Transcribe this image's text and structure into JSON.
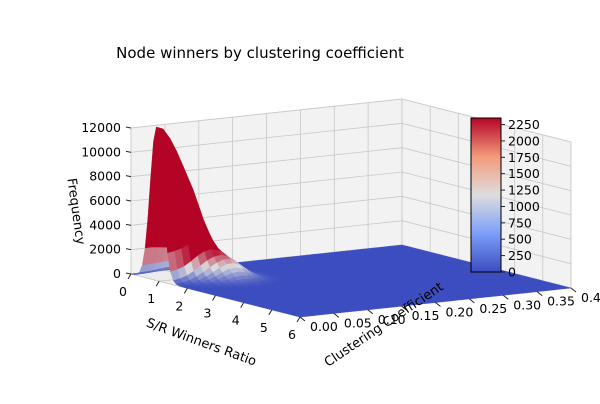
{
  "chart_data": {
    "type": "surface3d",
    "title": "Node winners by clustering coefficient",
    "xlabel": "S/R Winners Ratio",
    "ylabel": "Clustering Coefficient",
    "zlabel": "Frequency",
    "xlim": [
      0,
      6
    ],
    "ylim": [
      0,
      0.4
    ],
    "zlim": [
      0,
      12000
    ],
    "x_ticks": [
      "0",
      "1",
      "2",
      "3",
      "4",
      "5",
      "6"
    ],
    "y_ticks": [
      "0.00",
      "0.05",
      "0.10",
      "0.15",
      "0.20",
      "0.25",
      "0.30",
      "0.35",
      "0.40"
    ],
    "z_ticks": [
      "0",
      "2000",
      "4000",
      "6000",
      "8000",
      "10000",
      "12000"
    ],
    "colormap": "coolwarm",
    "colormap_low": "#3b4cc0",
    "colormap_mid": "#dddddd",
    "colormap_high": "#b40426",
    "colorbar": {
      "vmin": 0,
      "vmax": 2350,
      "ticks": [
        "0",
        "250",
        "500",
        "750",
        "1000",
        "1250",
        "1500",
        "1750",
        "2000",
        "2250"
      ]
    },
    "grid": true,
    "surface_peaks": [
      {
        "x": 0.9,
        "y": 0.0,
        "z": 12500
      },
      {
        "x": 1.0,
        "y": 0.05,
        "z": 3000
      },
      {
        "x": 1.5,
        "y": 0.08,
        "z": 1500
      }
    ]
  }
}
